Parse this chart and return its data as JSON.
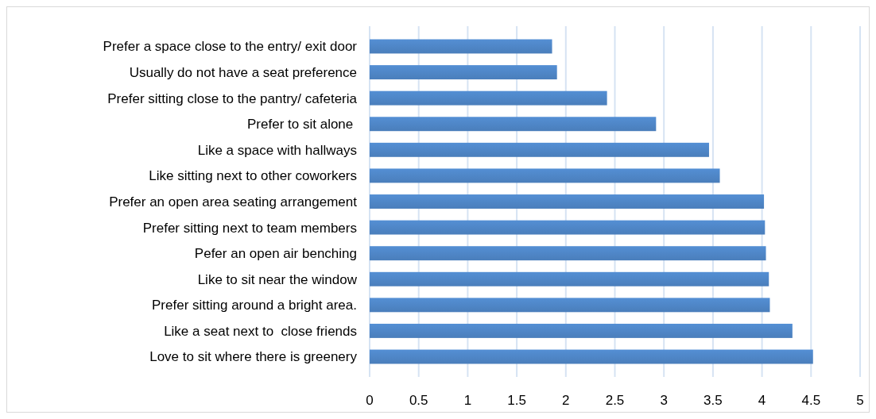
{
  "chart_data": {
    "type": "bar",
    "orientation": "horizontal",
    "categories": [
      "Prefer a space close to the entry/ exit door",
      "Usually do not have a seat preference",
      "Prefer sitting close to the pantry/ cafeteria",
      "Prefer to sit alone ",
      "Like a space with hallways",
      "Like sitting next to other coworkers",
      "Prefer an open area seating arrangement",
      "Prefer sitting next to team members",
      "Pefer an open air benching",
      "Like to sit near the window",
      "Prefer sitting around a bright area.",
      "Like a seat next to  close friends",
      "Love to sit where there is greenery"
    ],
    "values": [
      1.86,
      1.91,
      2.42,
      2.92,
      3.46,
      3.57,
      4.02,
      4.03,
      4.04,
      4.07,
      4.08,
      4.31,
      4.52
    ],
    "color": "#4a7ebb",
    "xlim": [
      0,
      5
    ],
    "xticks": [
      0,
      0.5,
      1,
      1.5,
      2,
      2.5,
      3,
      3.5,
      4,
      4.5,
      5
    ],
    "grid": "x"
  }
}
